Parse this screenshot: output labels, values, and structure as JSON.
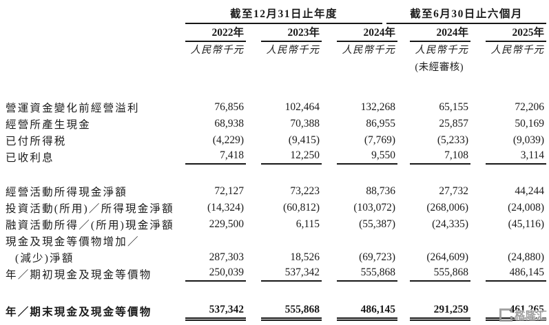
{
  "colors": {
    "background": "#ffffff",
    "text": "#1a1a1a",
    "rule": "#161616",
    "watermark": "#9b9b9b"
  },
  "table": {
    "col_groups": [
      {
        "label": "截至12月31日止年度",
        "columns": [
          "2022年",
          "2023年",
          "2024年"
        ]
      },
      {
        "label": "截至6月30日止六個月",
        "columns": [
          "2024年",
          "2025年"
        ]
      }
    ],
    "unit_label": "人民幣千元",
    "unaudited_label": "(未經審核)",
    "unaudited_column_index": 3,
    "rows": [
      {
        "label": "營運資金變化前經營溢利",
        "values": [
          "76,856",
          "102,464",
          "132,268",
          "65,155",
          "72,206"
        ]
      },
      {
        "label": "經營所產生現金",
        "values": [
          "68,938",
          "70,388",
          "86,955",
          "25,857",
          "50,169"
        ]
      },
      {
        "label": "已付所得税",
        "values": [
          "(4,229)",
          "(9,415)",
          "(7,769)",
          "(5,233)",
          "(9,039)"
        ]
      },
      {
        "label": "已收利息",
        "rule": "single",
        "values": [
          "7,418",
          "12,250",
          "9,550",
          "7,108",
          "3,114"
        ]
      },
      {
        "type": "spacer"
      },
      {
        "label": "經營活動所得現金淨額",
        "values": [
          "72,127",
          "73,223",
          "88,736",
          "27,732",
          "44,244"
        ]
      },
      {
        "label": "投資活動(所用)／所得現金淨額",
        "values": [
          "(14,324)",
          "(60,812)",
          "(103,072)",
          "(268,006)",
          "(24,008)"
        ]
      },
      {
        "label": "融資活動所得／(所用)現金淨額",
        "values": [
          "229,500",
          "6,115",
          "(55,387)",
          "(24,335)",
          "(45,116)"
        ]
      },
      {
        "label": "現金及現金等價物增加／",
        "values": [
          "",
          "",
          "",
          "",
          ""
        ]
      },
      {
        "label": "(減少)淨額",
        "indent": true,
        "values": [
          "287,303",
          "18,526",
          "(69,723)",
          "(264,609)",
          "(24,880)"
        ]
      },
      {
        "label": "年／期初現金及現金等價物",
        "rule": "single",
        "values": [
          "250,039",
          "537,342",
          "555,868",
          "555,868",
          "486,145"
        ]
      },
      {
        "type": "spacer"
      },
      {
        "label": "年／期末現金及現金等價物",
        "bold": true,
        "rule": "double",
        "values": [
          "537,342",
          "555,868",
          "486,145",
          "291,259",
          "461,265"
        ]
      }
    ]
  },
  "watermark": {
    "text": "格隆汇"
  }
}
